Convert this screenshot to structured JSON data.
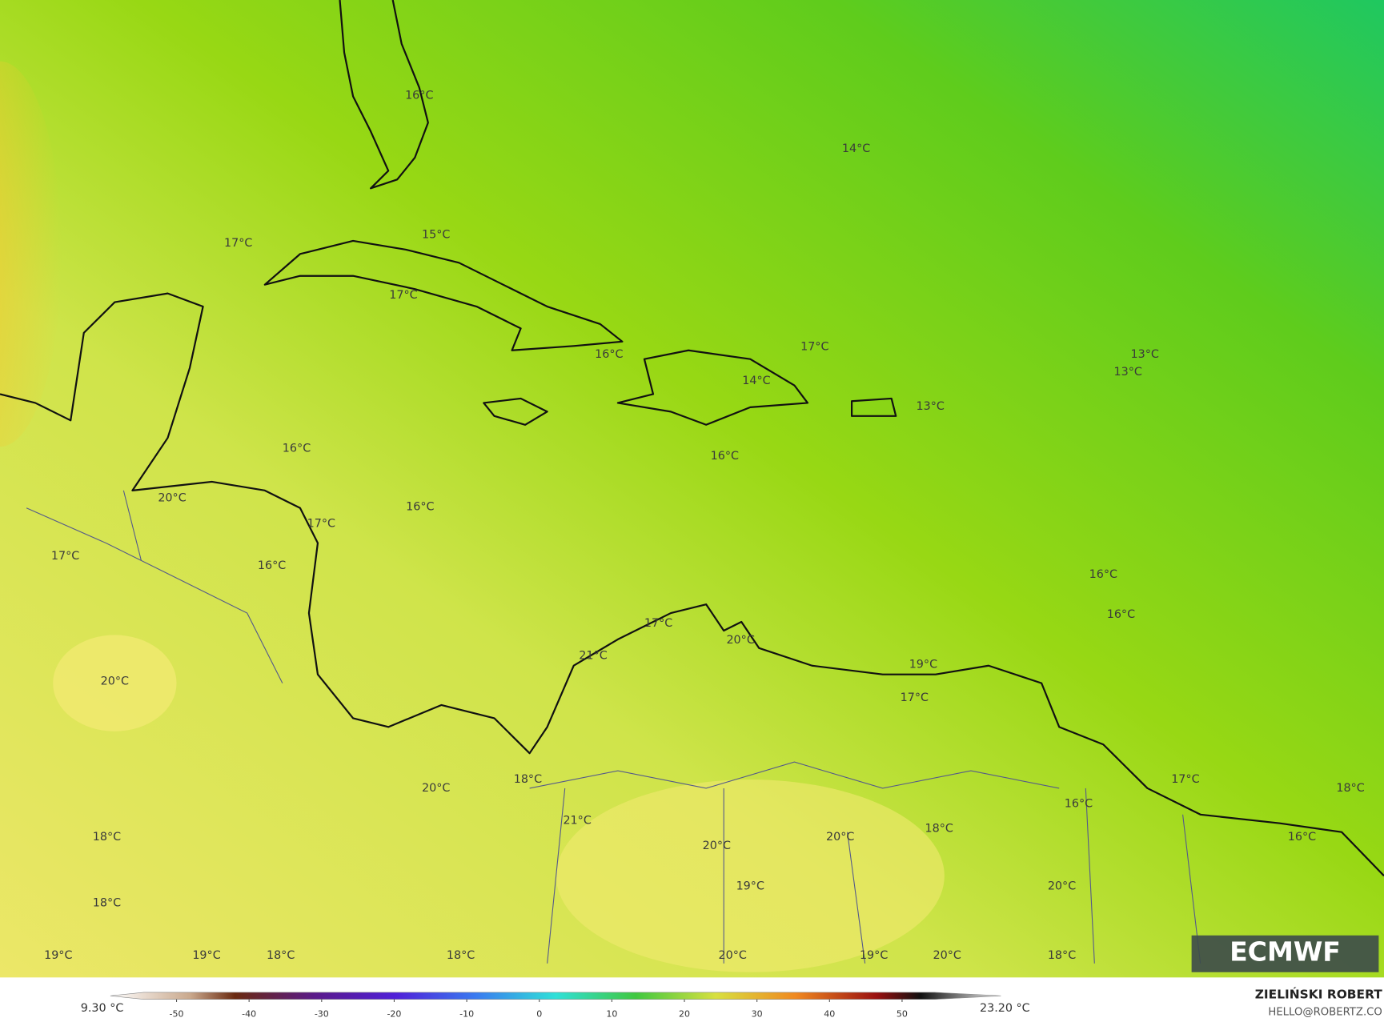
{
  "map": {
    "labels": [
      "16°C",
      "14°C",
      "17°C",
      "15°C",
      "17°C",
      "16°C",
      "17°C",
      "13°C",
      "13°C",
      "14°C",
      "13°C",
      "16°C",
      "16°C",
      "20°C",
      "16°C",
      "17°C",
      "17°C",
      "16°C",
      "16°C",
      "16°C",
      "17°C",
      "20°C",
      "21°C",
      "19°C",
      "20°C",
      "17°C",
      "18°C",
      "17°C",
      "20°C",
      "18°C",
      "16°C",
      "21°C",
      "18°C",
      "18°C",
      "20°C",
      "16°C",
      "20°C",
      "19°C",
      "20°C",
      "18°C",
      "19°C",
      "19°C",
      "18°C",
      "18°C",
      "20°C",
      "19°C",
      "20°C",
      "18°C"
    ],
    "logo": "ECMWF"
  },
  "colorbar": {
    "min_label": "9.30 °C",
    "max_label": "23.20 °C",
    "ticks": [
      -50,
      -40,
      -30,
      -20,
      -10,
      0,
      10,
      20,
      30,
      40,
      50
    ]
  },
  "credit": {
    "name": "ZIELIŃSKI ROBERT",
    "contact": "HELLO@ROBERTZ.CO"
  }
}
